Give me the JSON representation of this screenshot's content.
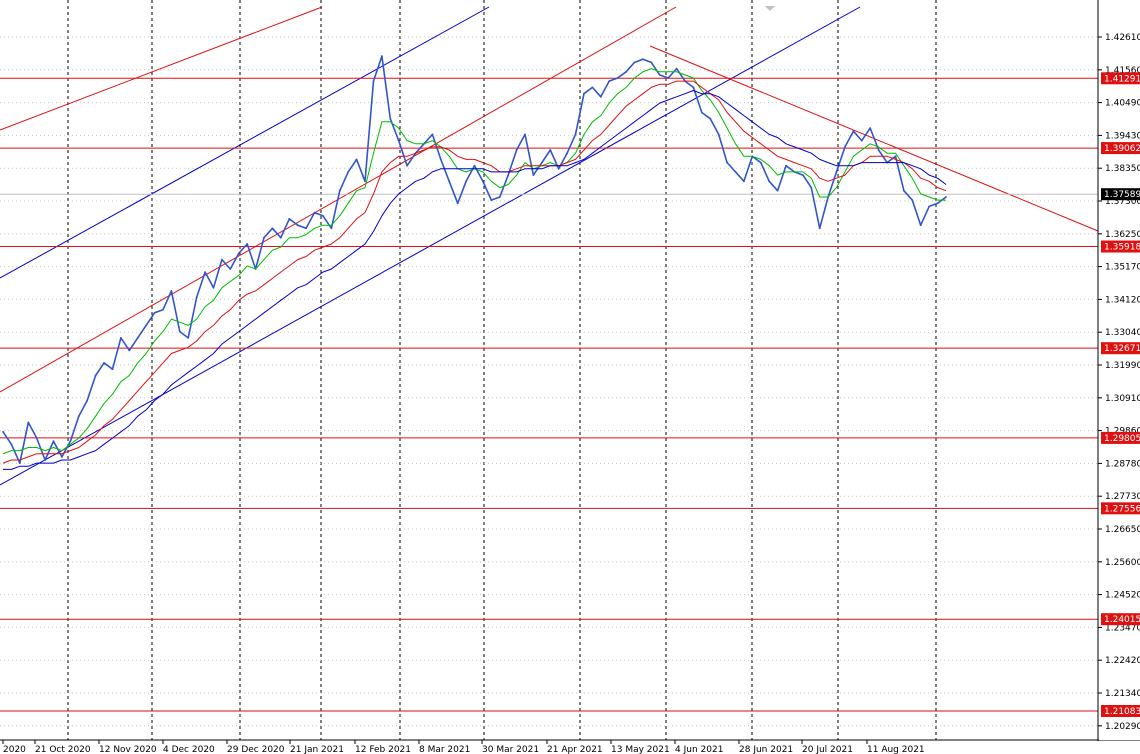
{
  "chart_data": {
    "type": "line",
    "title": "",
    "xlabel": "",
    "ylabel": "",
    "ylim": [
      1.2029,
      1.4311
    ],
    "grid": true,
    "price_tick_labels": [
      "1.42610",
      "1.41560",
      "1.40490",
      "1.39430",
      "1.38350",
      "1.37300",
      "1.36250",
      "1.35170",
      "1.34120",
      "1.33040",
      "1.31990",
      "1.30910",
      "1.29860",
      "1.28780",
      "1.27730",
      "1.26650",
      "1.25600",
      "1.24520",
      "1.23470",
      "1.22420",
      "1.21340",
      "1.20290"
    ],
    "date_labels": [
      "2020",
      "21 Oct 2020",
      "12 Nov 2020",
      "4 Dec 2020",
      "29 Dec 2020",
      "21 Jan 2021",
      "12 Feb 2021",
      "8 Mar 2021",
      "30 Mar 2021",
      "21 Apr 2021",
      "13 May 2021",
      "4 Jun 2021",
      "28 Jun 2021",
      "20 Jul 2021",
      "11 Aug 2021"
    ],
    "horizontal_levels": [
      {
        "label": "1.41291",
        "value": 1.41291
      },
      {
        "label": "1.39062",
        "value": 1.39062
      },
      {
        "label": "1.35918",
        "value": 1.35918
      },
      {
        "label": "1.32671",
        "value": 1.32671
      },
      {
        "label": "1.29805",
        "value": 1.29805
      },
      {
        "label": "1.27556",
        "value": 1.27556
      },
      {
        "label": "1.24015",
        "value": 1.24015
      },
      {
        "label": "1.21083",
        "value": 1.21083
      }
    ],
    "current_price": {
      "label": "1.37589",
      "value": 1.37589
    },
    "series": [
      {
        "color": "#3355cc",
        "values": [
          1.3,
          1.296,
          1.29,
          1.303,
          1.298,
          1.291,
          1.297,
          1.292,
          1.297,
          1.305,
          1.31,
          1.318,
          1.322,
          1.32,
          1.33,
          1.326,
          1.33,
          1.334,
          1.338,
          1.339,
          1.345,
          1.332,
          1.33,
          1.343,
          1.351,
          1.346,
          1.355,
          1.352,
          1.357,
          1.36,
          1.352,
          1.362,
          1.365,
          1.362,
          1.368,
          1.366,
          1.365,
          1.37,
          1.369,
          1.365,
          1.377,
          1.383,
          1.387,
          1.38,
          1.412,
          1.42,
          1.4,
          1.393,
          1.385,
          1.389,
          1.392,
          1.395,
          1.387,
          1.38,
          1.373,
          1.38,
          1.385,
          1.38,
          1.374,
          1.375,
          1.382,
          1.39,
          1.395,
          1.382,
          1.386,
          1.39,
          1.384,
          1.389,
          1.395,
          1.408,
          1.41,
          1.407,
          1.412,
          1.413,
          1.415,
          1.418,
          1.419,
          1.418,
          1.414,
          1.413,
          1.416,
          1.412,
          1.41,
          1.402,
          1.4,
          1.395,
          1.386,
          1.383,
          1.38,
          1.388,
          1.386,
          1.38,
          1.377,
          1.385,
          1.383,
          1.382,
          1.378,
          1.365,
          1.375,
          1.383,
          1.391,
          1.396,
          1.393,
          1.397,
          1.39,
          1.386,
          1.388,
          1.377,
          1.374,
          1.366,
          1.372,
          1.373,
          1.375
        ]
      },
      {
        "color": "#00bb00",
        "values": [
          1.293,
          1.294,
          1.294,
          1.295,
          1.295,
          1.294,
          1.295,
          1.294,
          1.296,
          1.298,
          1.301,
          1.305,
          1.309,
          1.312,
          1.316,
          1.318,
          1.322,
          1.325,
          1.329,
          1.332,
          1.336,
          1.335,
          1.334,
          1.336,
          1.34,
          1.342,
          1.346,
          1.348,
          1.35,
          1.353,
          1.352,
          1.355,
          1.358,
          1.359,
          1.362,
          1.362,
          1.363,
          1.365,
          1.366,
          1.366,
          1.369,
          1.373,
          1.377,
          1.378,
          1.389,
          1.399,
          1.399,
          1.397,
          1.393,
          1.392,
          1.392,
          1.393,
          1.391,
          1.388,
          1.384,
          1.383,
          1.384,
          1.383,
          1.38,
          1.378,
          1.379,
          1.382,
          1.386,
          1.384,
          1.385,
          1.386,
          1.385,
          1.386,
          1.389,
          1.395,
          1.399,
          1.401,
          1.405,
          1.408,
          1.41,
          1.413,
          1.415,
          1.416,
          1.415,
          1.415,
          1.415,
          1.414,
          1.413,
          1.409,
          1.406,
          1.402,
          1.397,
          1.392,
          1.388,
          1.388,
          1.387,
          1.385,
          1.382,
          1.383,
          1.383,
          1.383,
          1.381,
          1.375,
          1.375,
          1.378,
          1.383,
          1.388,
          1.39,
          1.392,
          1.391,
          1.389,
          1.389,
          1.385,
          1.381,
          1.376,
          1.375,
          1.374,
          1.374
        ]
      },
      {
        "color": "#dd1111",
        "values": [
          1.29,
          1.291,
          1.291,
          1.292,
          1.293,
          1.293,
          1.293,
          1.293,
          1.294,
          1.295,
          1.297,
          1.299,
          1.302,
          1.304,
          1.307,
          1.31,
          1.313,
          1.316,
          1.319,
          1.322,
          1.325,
          1.326,
          1.327,
          1.329,
          1.332,
          1.334,
          1.337,
          1.339,
          1.342,
          1.344,
          1.345,
          1.347,
          1.349,
          1.351,
          1.353,
          1.355,
          1.356,
          1.358,
          1.359,
          1.36,
          1.362,
          1.365,
          1.368,
          1.37,
          1.376,
          1.383,
          1.386,
          1.388,
          1.388,
          1.389,
          1.39,
          1.391,
          1.391,
          1.39,
          1.388,
          1.387,
          1.387,
          1.386,
          1.385,
          1.383,
          1.383,
          1.384,
          1.385,
          1.385,
          1.385,
          1.385,
          1.385,
          1.386,
          1.387,
          1.39,
          1.393,
          1.395,
          1.398,
          1.401,
          1.404,
          1.406,
          1.408,
          1.41,
          1.411,
          1.411,
          1.412,
          1.412,
          1.412,
          1.41,
          1.408,
          1.406,
          1.402,
          1.399,
          1.396,
          1.394,
          1.392,
          1.39,
          1.388,
          1.387,
          1.386,
          1.385,
          1.384,
          1.381,
          1.38,
          1.381,
          1.382,
          1.385,
          1.386,
          1.388,
          1.388,
          1.388,
          1.387,
          1.386,
          1.384,
          1.381,
          1.38,
          1.378,
          1.377
        ]
      },
      {
        "color": "#0000cc",
        "values": [
          1.288,
          1.288,
          1.289,
          1.289,
          1.29,
          1.29,
          1.29,
          1.291,
          1.291,
          1.292,
          1.293,
          1.294,
          1.296,
          1.298,
          1.3,
          1.302,
          1.305,
          1.307,
          1.31,
          1.312,
          1.315,
          1.317,
          1.319,
          1.321,
          1.323,
          1.325,
          1.328,
          1.33,
          1.332,
          1.334,
          1.336,
          1.338,
          1.34,
          1.342,
          1.344,
          1.346,
          1.347,
          1.349,
          1.351,
          1.352,
          1.354,
          1.356,
          1.358,
          1.36,
          1.364,
          1.369,
          1.373,
          1.376,
          1.378,
          1.38,
          1.381,
          1.383,
          1.384,
          1.384,
          1.384,
          1.384,
          1.384,
          1.384,
          1.383,
          1.383,
          1.383,
          1.383,
          1.384,
          1.384,
          1.384,
          1.385,
          1.385,
          1.385,
          1.386,
          1.387,
          1.389,
          1.391,
          1.393,
          1.395,
          1.397,
          1.399,
          1.401,
          1.403,
          1.405,
          1.406,
          1.407,
          1.408,
          1.409,
          1.408,
          1.408,
          1.407,
          1.405,
          1.403,
          1.401,
          1.399,
          1.397,
          1.395,
          1.394,
          1.392,
          1.391,
          1.39,
          1.389,
          1.387,
          1.386,
          1.385,
          1.385,
          1.385,
          1.386,
          1.386,
          1.386,
          1.386,
          1.386,
          1.386,
          1.385,
          1.384,
          1.382,
          1.381,
          1.379
        ]
      }
    ]
  }
}
